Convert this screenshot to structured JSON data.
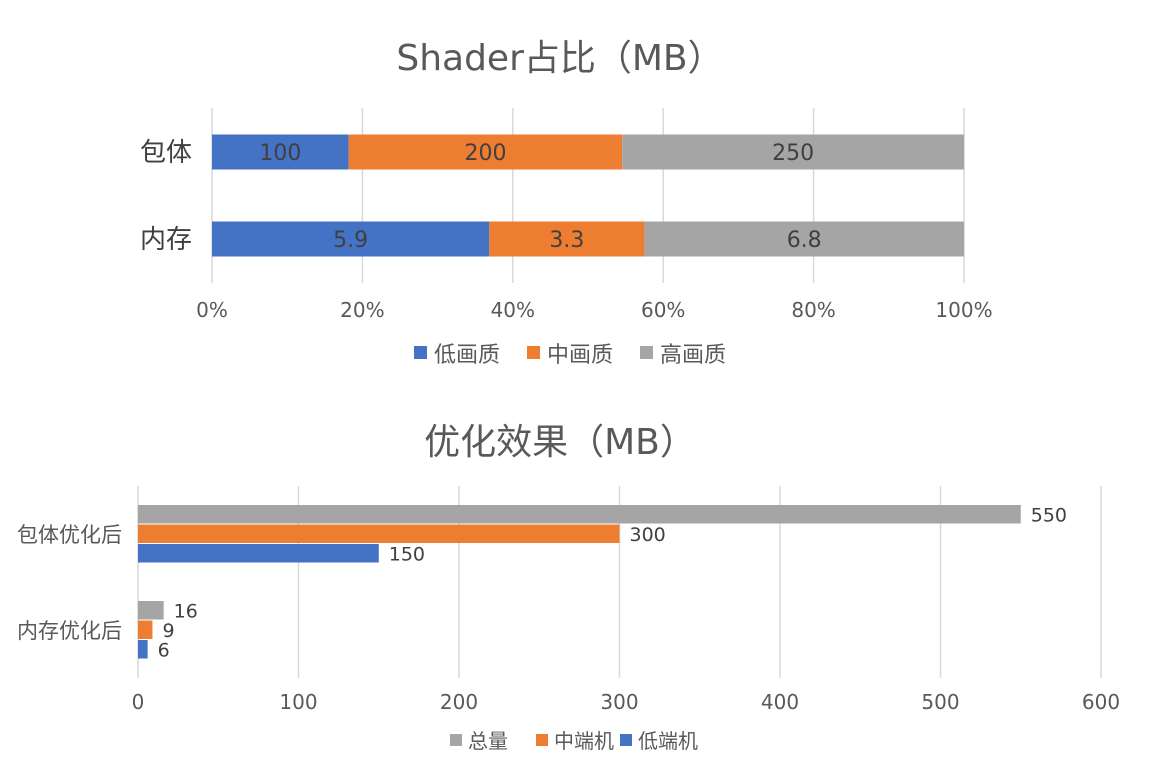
{
  "chart_data": [
    {
      "type": "bar",
      "orientation": "horizontal",
      "stacked": "percent",
      "title": "Shader占比（MB）",
      "categories": [
        "包体",
        "内存"
      ],
      "series": [
        {
          "name": "低画质",
          "values": [
            100,
            5.9
          ],
          "labels": [
            "100",
            "5.9"
          ],
          "color": "#4472C4"
        },
        {
          "name": "中画质",
          "values": [
            200,
            3.3
          ],
          "labels": [
            "200",
            "3.3"
          ],
          "color": "#ED7D31"
        },
        {
          "name": "高画质",
          "values": [
            250,
            6.8
          ],
          "labels": [
            "250",
            "6.8"
          ],
          "color": "#A5A5A5"
        }
      ],
      "xlim": [
        0,
        100
      ],
      "xticks": [
        "0%",
        "20%",
        "40%",
        "60%",
        "80%",
        "100%"
      ],
      "grid": true,
      "legend": "bottom"
    },
    {
      "type": "bar",
      "orientation": "horizontal",
      "title": "优化效果（MB）",
      "categories": [
        "包体优化后",
        "内存优化后"
      ],
      "series": [
        {
          "name": "总量",
          "values": [
            550,
            16
          ],
          "color": "#A5A5A5"
        },
        {
          "name": "中端机",
          "values": [
            300,
            9
          ],
          "color": "#ED7D31"
        },
        {
          "name": "低端机",
          "values": [
            150,
            6
          ],
          "color": "#4472C4"
        }
      ],
      "xlim": [
        0,
        600
      ],
      "xticks": [
        "0",
        "100",
        "200",
        "300",
        "400",
        "500",
        "600"
      ],
      "grid": true,
      "legend": "bottom"
    }
  ]
}
